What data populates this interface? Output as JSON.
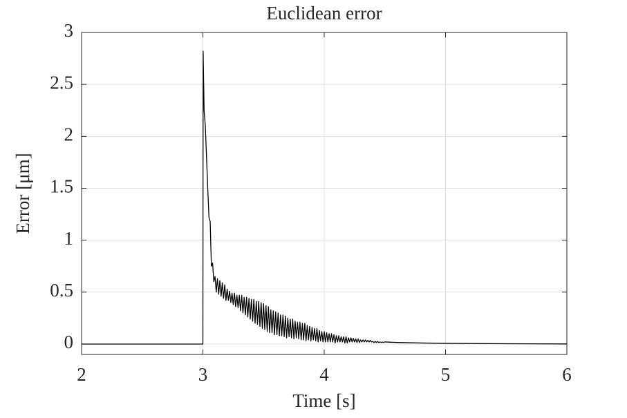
{
  "chart_data": {
    "type": "line",
    "title": "Euclidean error",
    "x_label": "Time [s]",
    "y_label": "Error [μm]",
    "color": "#000000",
    "grid": true,
    "xlim": [
      2,
      6
    ],
    "xticks": [
      2,
      3,
      4,
      5,
      6
    ],
    "ylim": [
      -0.1,
      3
    ],
    "yticks": [
      0,
      0.5,
      1,
      1.5,
      2,
      2.5,
      3
    ],
    "x": [
      2,
      2.99,
      3,
      3.002,
      3.01,
      3.02,
      3.03,
      3.04,
      3.05,
      3.06,
      3.07,
      3.08,
      3.09,
      3.1,
      3.11,
      3.12,
      3.13,
      3.14,
      3.15,
      3.16,
      3.17,
      3.18,
      3.19,
      3.2,
      3.21,
      3.22,
      3.23,
      3.24,
      3.25,
      3.26,
      3.27,
      3.28,
      3.29,
      3.3,
      3.31,
      3.32,
      3.33,
      3.34,
      3.35,
      3.36,
      3.37,
      3.38,
      3.39,
      3.4,
      3.41,
      3.42,
      3.43,
      3.44,
      3.45,
      3.46,
      3.47,
      3.48,
      3.49,
      3.5,
      3.51,
      3.52,
      3.53,
      3.54,
      3.55,
      3.56,
      3.57,
      3.58,
      3.59,
      3.6,
      3.61,
      3.62,
      3.63,
      3.64,
      3.65,
      3.66,
      3.67,
      3.68,
      3.69,
      3.7,
      3.71,
      3.72,
      3.73,
      3.74,
      3.75,
      3.76,
      3.77,
      3.78,
      3.79,
      3.8,
      3.81,
      3.82,
      3.83,
      3.84,
      3.85,
      3.86,
      3.87,
      3.88,
      3.89,
      3.9,
      3.91,
      3.92,
      3.93,
      3.94,
      3.95,
      3.96,
      3.97,
      3.98,
      3.99,
      4.0,
      4.01,
      4.02,
      4.03,
      4.04,
      4.05,
      4.06,
      4.07,
      4.08,
      4.09,
      4.1,
      4.11,
      4.12,
      4.13,
      4.14,
      4.15,
      4.16,
      4.17,
      4.18,
      4.19,
      4.2,
      4.21,
      4.22,
      4.23,
      4.24,
      4.25,
      4.26,
      4.27,
      4.28,
      4.29,
      4.3,
      4.31,
      4.32,
      4.33,
      4.34,
      4.35,
      4.36,
      4.37,
      4.38,
      4.39,
      4.4,
      4.41,
      4.42,
      4.43,
      4.44,
      4.45,
      4.46,
      4.47,
      4.48,
      4.49,
      4.5,
      4.6,
      4.8,
      5,
      5.5,
      6
    ],
    "values": [
      0,
      0,
      0,
      2.82,
      2.25,
      2.1,
      1.8,
      1.5,
      1.22,
      1.18,
      0.75,
      0.78,
      0.6,
      0.65,
      0.5,
      0.63,
      0.48,
      0.61,
      0.46,
      0.59,
      0.44,
      0.57,
      0.42,
      0.53,
      0.42,
      0.51,
      0.4,
      0.49,
      0.38,
      0.49,
      0.36,
      0.47,
      0.35,
      0.47,
      0.32,
      0.47,
      0.3,
      0.45,
      0.28,
      0.45,
      0.26,
      0.44,
      0.24,
      0.43,
      0.22,
      0.43,
      0.2,
      0.41,
      0.19,
      0.41,
      0.17,
      0.4,
      0.15,
      0.39,
      0.14,
      0.37,
      0.12,
      0.36,
      0.11,
      0.33,
      0.11,
      0.32,
      0.09,
      0.31,
      0.09,
      0.3,
      0.08,
      0.28,
      0.08,
      0.28,
      0.07,
      0.27,
      0.06,
      0.25,
      0.07,
      0.24,
      0.06,
      0.24,
      0.05,
      0.22,
      0.06,
      0.21,
      0.05,
      0.21,
      0.04,
      0.2,
      0.04,
      0.2,
      0.03,
      0.18,
      0.04,
      0.17,
      0.03,
      0.16,
      0.04,
      0.15,
      0.03,
      0.15,
      0.02,
      0.13,
      0.03,
      0.12,
      0.02,
      0.12,
      0.02,
      0.11,
      0.02,
      0.1,
      0.02,
      0.1,
      0.02,
      0.09,
      0.01,
      0.08,
      0.02,
      0.08,
      0.02,
      0.07,
      0.02,
      0.07,
      0.01,
      0.07,
      0.01,
      0.06,
      0.02,
      0.06,
      0.02,
      0.055,
      0.02,
      0.05,
      0.015,
      0.05,
      0.015,
      0.04,
      0.02,
      0.04,
      0.02,
      0.04,
      0.02,
      0.035,
      0.02,
      0.035,
      0.02,
      0.025,
      0.015,
      0.025,
      0.015,
      0.025,
      0.015,
      0.02,
      0.015,
      0.02,
      0.015,
      0.02,
      0.015,
      0.01,
      0.007,
      0.003,
      0.001
    ]
  }
}
